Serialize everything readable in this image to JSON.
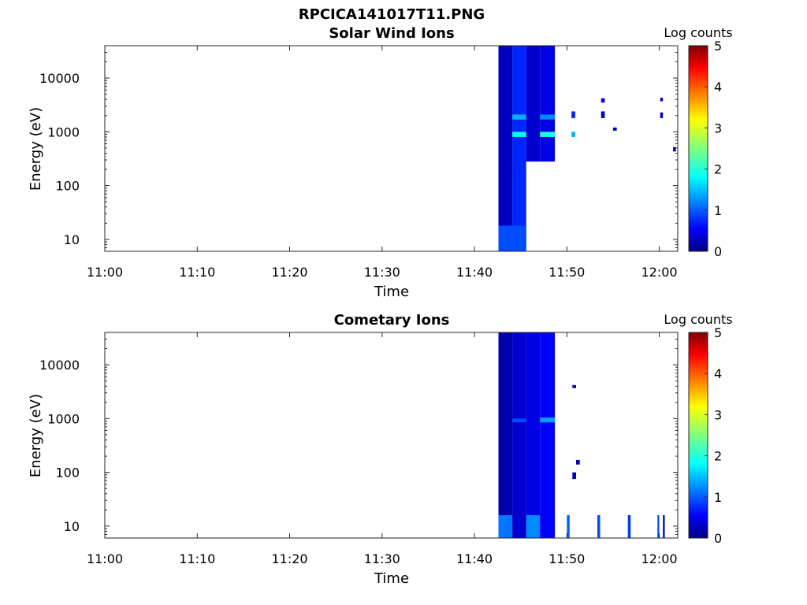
{
  "figure_title": "RPCICA141017T11.PNG",
  "colorbar": {
    "label": "Log counts",
    "ticks": [
      "0",
      "1",
      "2",
      "3",
      "4",
      "5"
    ],
    "range": [
      0,
      5
    ],
    "colormap": "jet"
  },
  "chart_data": [
    {
      "type": "heatmap",
      "title": "Solar Wind Ions",
      "xlabel": "Time",
      "ylabel": "Energy (eV)",
      "x_ticks": [
        "11:00",
        "11:10",
        "11:20",
        "11:30",
        "11:40",
        "11:50",
        "12:00"
      ],
      "y_ticks": [
        "10",
        "100",
        "1000",
        "10000"
      ],
      "y_scale": "log",
      "ylim_eV": [
        6,
        40000
      ],
      "xlim": [
        "11:00",
        "12:02"
      ],
      "cells": [
        {
          "t0": "11:42.6",
          "t1": "11:44.1",
          "e0": 6,
          "e1": 40000,
          "value": 0.3
        },
        {
          "t0": "11:42.6",
          "t1": "11:44.1",
          "e0": 6,
          "e1": 18,
          "value": 1.0
        },
        {
          "t0": "11:44.1",
          "t1": "11:45.6",
          "e0": 6,
          "e1": 40000,
          "value": 0.8
        },
        {
          "t0": "11:44.1",
          "t1": "11:45.6",
          "e0": 6,
          "e1": 18,
          "value": 1.0
        },
        {
          "t0": "11:44.1",
          "t1": "11:45.6",
          "e0": 800,
          "e1": 1000,
          "value": 1.9
        },
        {
          "t0": "11:44.1",
          "t1": "11:45.6",
          "e0": 1700,
          "e1": 2100,
          "value": 1.5
        },
        {
          "t0": "11:45.6",
          "t1": "11:47.1",
          "e0": 280,
          "e1": 40000,
          "value": 0.4
        },
        {
          "t0": "11:47.1",
          "t1": "11:48.7",
          "e0": 280,
          "e1": 40000,
          "value": 0.5
        },
        {
          "t0": "11:47.1",
          "t1": "11:48.7",
          "e0": 800,
          "e1": 1000,
          "value": 2.0
        },
        {
          "t0": "11:47.1",
          "t1": "11:48.7",
          "e0": 1700,
          "e1": 2100,
          "value": 1.3
        },
        {
          "t0": "11:50.5",
          "t1": "11:50.9",
          "e0": 800,
          "e1": 1000,
          "value": 1.5
        },
        {
          "t0": "11:50.5",
          "t1": "11:50.9",
          "e0": 1800,
          "e1": 2400,
          "value": 0.8
        },
        {
          "t0": "11:53.7",
          "t1": "11:54.1",
          "e0": 1800,
          "e1": 2400,
          "value": 0.4
        },
        {
          "t0": "11:53.7",
          "t1": "11:54.1",
          "e0": 3500,
          "e1": 4200,
          "value": 0.5
        },
        {
          "t0": "11:55.0",
          "t1": "11:55.4",
          "e0": 1050,
          "e1": 1200,
          "value": 0.3
        },
        {
          "t0": "12:00.1",
          "t1": "12:00.4",
          "e0": 1800,
          "e1": 2300,
          "value": 0.3
        },
        {
          "t0": "12:00.1",
          "t1": "12:00.4",
          "e0": 3700,
          "e1": 4300,
          "value": 0.3
        },
        {
          "t0": "12:01.5",
          "t1": "12:01.8",
          "e0": 430,
          "e1": 520,
          "value": 0.2
        }
      ]
    },
    {
      "type": "heatmap",
      "title": "Cometary Ions",
      "xlabel": "Time",
      "ylabel": "Energy (eV)",
      "x_ticks": [
        "11:00",
        "11:10",
        "11:20",
        "11:30",
        "11:40",
        "11:50",
        "12:00"
      ],
      "y_ticks": [
        "10",
        "100",
        "1000",
        "10000"
      ],
      "y_scale": "log",
      "ylim_eV": [
        6,
        40000
      ],
      "xlim": [
        "11:00",
        "12:02"
      ],
      "cells": [
        {
          "t0": "11:42.6",
          "t1": "11:44.1",
          "e0": 6,
          "e1": 40000,
          "value": 0.2
        },
        {
          "t0": "11:42.6",
          "t1": "11:44.1",
          "e0": 6,
          "e1": 16,
          "value": 1.2
        },
        {
          "t0": "11:44.1",
          "t1": "11:45.6",
          "e0": 6,
          "e1": 40000,
          "value": 0.4
        },
        {
          "t0": "11:44.1",
          "t1": "11:45.6",
          "e0": 850,
          "e1": 1000,
          "value": 1.0
        },
        {
          "t0": "11:45.6",
          "t1": "11:47.1",
          "e0": 6,
          "e1": 40000,
          "value": 0.5
        },
        {
          "t0": "11:45.6",
          "t1": "11:47.1",
          "e0": 6,
          "e1": 16,
          "value": 1.3
        },
        {
          "t0": "11:47.1",
          "t1": "11:48.7",
          "e0": 6,
          "e1": 40000,
          "value": 0.6
        },
        {
          "t0": "11:47.1",
          "t1": "11:48.7",
          "e0": 850,
          "e1": 1050,
          "value": 1.4
        },
        {
          "t0": "11:50.0",
          "t1": "11:50.3",
          "e0": 6,
          "e1": 16,
          "value": 1.1
        },
        {
          "t0": "11:53.3",
          "t1": "11:53.6",
          "e0": 6,
          "e1": 16,
          "value": 1.0
        },
        {
          "t0": "11:56.6",
          "t1": "11:56.9",
          "e0": 6,
          "e1": 16,
          "value": 0.9
        },
        {
          "t0": "11:59.8",
          "t1": "12:00.0",
          "e0": 6,
          "e1": 16,
          "value": 1.0
        },
        {
          "t0": "12:00.4",
          "t1": "12:00.6",
          "e0": 6,
          "e1": 16,
          "value": 0.3
        },
        {
          "t0": "11:50.6",
          "t1": "11:51.0",
          "e0": 75,
          "e1": 100,
          "value": 0.3
        },
        {
          "t0": "11:51.0",
          "t1": "11:51.4",
          "e0": 140,
          "e1": 170,
          "value": 0.3
        },
        {
          "t0": "11:50.6",
          "t1": "11:51.0",
          "e0": 3700,
          "e1": 4200,
          "value": 0.3
        }
      ]
    }
  ]
}
